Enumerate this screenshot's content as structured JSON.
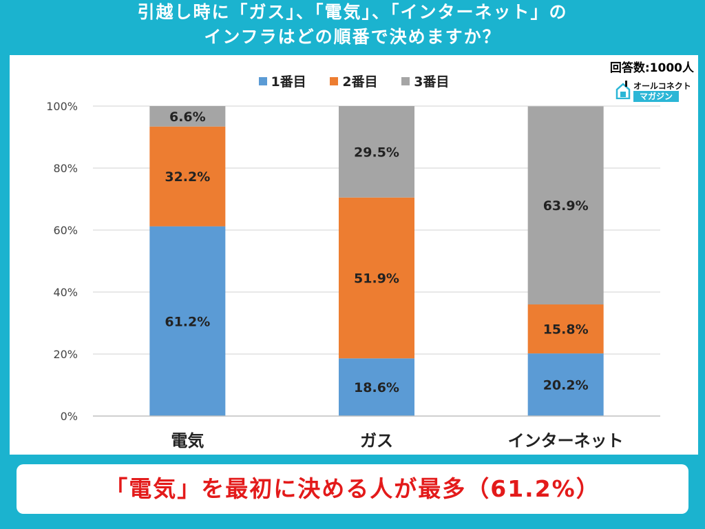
{
  "header": {
    "title_line1": "引越し時に「ガス」、「電気」、「インターネット」の",
    "title_line2": "インフラはどの順番で決めますか？",
    "respondents": "回答数:1000人"
  },
  "logo": {
    "brand_top": "オールコネクト",
    "brand_bottom": "マガジン"
  },
  "footer": {
    "conclusion": "「電気」を最初に決める人が最多（61.2%）"
  },
  "colors": {
    "background": "#1bb3cf",
    "series1": "#5b9bd5",
    "series2": "#ed7d31",
    "series3": "#a5a5a5",
    "footer_text": "#e31a1a"
  },
  "chart_data": {
    "type": "bar",
    "stacked": true,
    "categories": [
      "電気",
      "ガス",
      "インターネット"
    ],
    "series": [
      {
        "name": "1番目",
        "values": [
          61.2,
          18.6,
          20.2
        ]
      },
      {
        "name": "2番目",
        "values": [
          32.2,
          51.9,
          15.8
        ]
      },
      {
        "name": "3番目",
        "values": [
          6.6,
          29.5,
          63.9
        ]
      }
    ],
    "value_labels": [
      [
        "61.2%",
        "18.6%",
        "20.2%"
      ],
      [
        "32.2%",
        "51.9%",
        "15.8%"
      ],
      [
        "6.6%",
        "29.5%",
        "63.9%"
      ]
    ],
    "y_ticks": [
      "0%",
      "20%",
      "40%",
      "60%",
      "80%",
      "100%"
    ],
    "ylim": [
      0,
      100
    ],
    "grid": true,
    "legend_position": "top"
  }
}
